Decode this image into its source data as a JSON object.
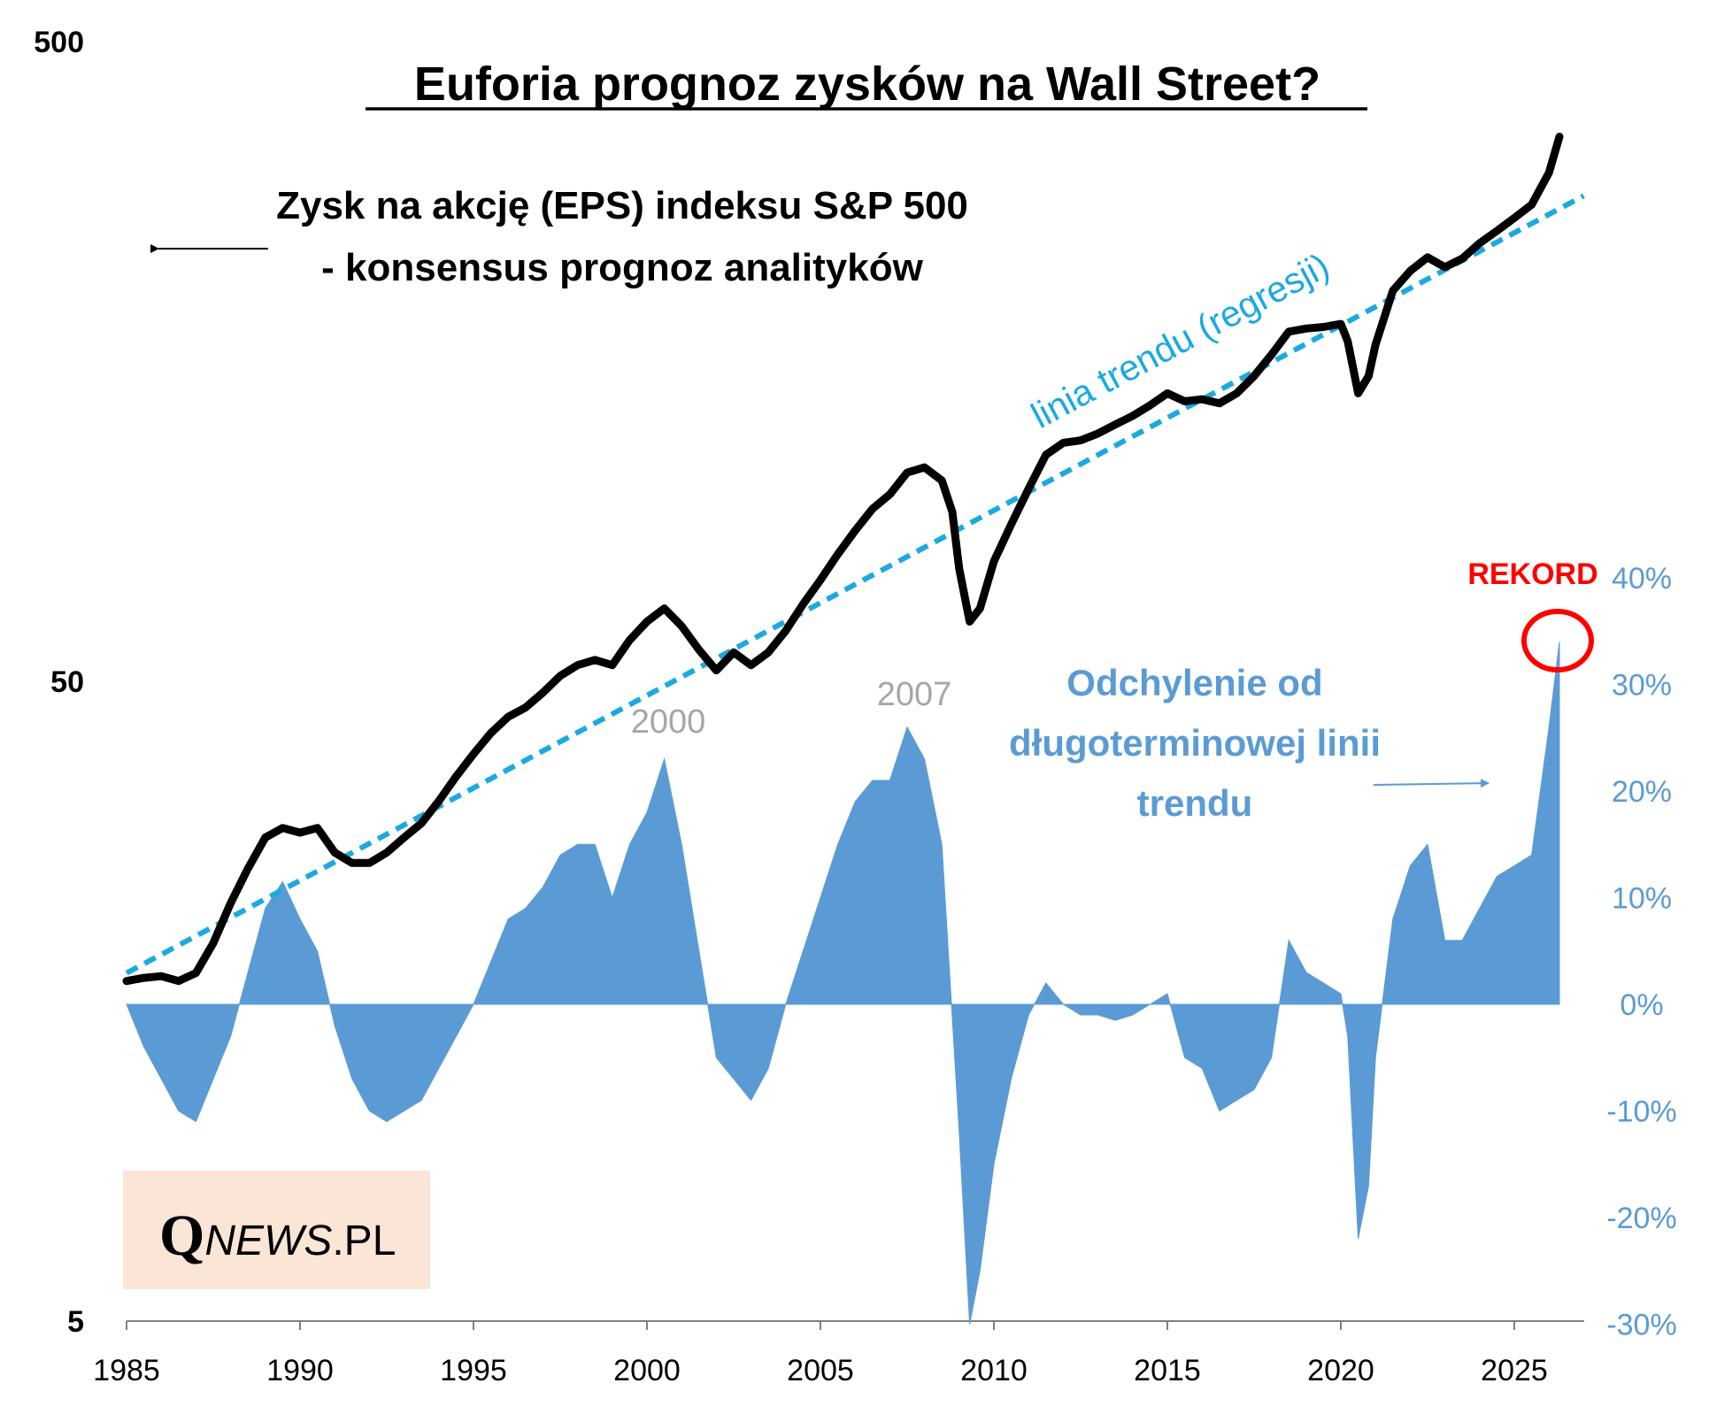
{
  "chart_data": {
    "type": "line+area",
    "title": "Euforia prognoz zysków na Wall Street?",
    "x_ticks": [
      "1985",
      "1990",
      "1995",
      "2000",
      "2005",
      "2010",
      "2015",
      "2020",
      "2025"
    ],
    "xlim": [
      1985,
      2027
    ],
    "left_axis": {
      "scale": "log",
      "ticks": [
        "5",
        "50",
        "500"
      ],
      "range": [
        5,
        500
      ]
    },
    "right_axis": {
      "ticks": [
        "40%",
        "30%",
        "20%",
        "10%",
        "0%",
        "-10%",
        "-20%",
        "-30%"
      ],
      "range": [
        -30,
        40
      ]
    },
    "colors": {
      "eps_line": "#000000",
      "trend_line": "#1ba9e1",
      "deviation_area": "#5b9bd5",
      "record": "#ff0000",
      "peak_labels": "#a6a6a6",
      "logo_bg": "#fbe5d6"
    },
    "series": [
      {
        "name": "Zysk na akcję (EPS) indeksu S&P 500 - konsensus prognoz analityków",
        "axis": "left",
        "points": [
          [
            1985.0,
            17.0
          ],
          [
            1985.5,
            17.2
          ],
          [
            1986.0,
            17.3
          ],
          [
            1986.5,
            17.0
          ],
          [
            1987.0,
            17.5
          ],
          [
            1987.5,
            19.5
          ],
          [
            1988.0,
            22.5
          ],
          [
            1988.5,
            25.5
          ],
          [
            1989.0,
            28.5
          ],
          [
            1989.5,
            29.5
          ],
          [
            1990.0,
            29.0
          ],
          [
            1990.5,
            29.5
          ],
          [
            1991.0,
            27.0
          ],
          [
            1991.5,
            26.0
          ],
          [
            1992.0,
            26.0
          ],
          [
            1992.5,
            27.0
          ],
          [
            1993.0,
            28.5
          ],
          [
            1993.5,
            30.0
          ],
          [
            1994.0,
            32.5
          ],
          [
            1994.5,
            35.5
          ],
          [
            1995.0,
            38.5
          ],
          [
            1995.5,
            41.5
          ],
          [
            1996.0,
            44.0
          ],
          [
            1996.5,
            45.5
          ],
          [
            1997.0,
            48.0
          ],
          [
            1997.5,
            51.0
          ],
          [
            1998.0,
            53.0
          ],
          [
            1998.5,
            54.0
          ],
          [
            1999.0,
            53.0
          ],
          [
            1999.5,
            58.0
          ],
          [
            2000.0,
            62.0
          ],
          [
            2000.5,
            65.0
          ],
          [
            2001.0,
            61.0
          ],
          [
            2001.5,
            56.0
          ],
          [
            2002.0,
            52.0
          ],
          [
            2002.5,
            55.5
          ],
          [
            2003.0,
            53.0
          ],
          [
            2003.5,
            55.5
          ],
          [
            2004.0,
            60.0
          ],
          [
            2004.5,
            66.0
          ],
          [
            2005.0,
            72.0
          ],
          [
            2005.5,
            79.0
          ],
          [
            2006.0,
            86.0
          ],
          [
            2006.5,
            93.0
          ],
          [
            2007.0,
            98.0
          ],
          [
            2007.5,
            106.0
          ],
          [
            2008.0,
            108.0
          ],
          [
            2008.5,
            103.0
          ],
          [
            2008.8,
            92.0
          ],
          [
            2009.0,
            75.0
          ],
          [
            2009.3,
            62.0
          ],
          [
            2009.6,
            65.0
          ],
          [
            2010.0,
            77.0
          ],
          [
            2010.5,
            88.0
          ],
          [
            2011.0,
            100.0
          ],
          [
            2011.5,
            113.0
          ],
          [
            2012.0,
            118.0
          ],
          [
            2012.5,
            119.0
          ],
          [
            2013.0,
            122.0
          ],
          [
            2013.5,
            126.0
          ],
          [
            2014.0,
            130.0
          ],
          [
            2014.5,
            135.0
          ],
          [
            2015.0,
            141.0
          ],
          [
            2015.5,
            137.0
          ],
          [
            2016.0,
            138.0
          ],
          [
            2016.5,
            136.0
          ],
          [
            2017.0,
            141.0
          ],
          [
            2017.5,
            150.0
          ],
          [
            2018.0,
            162.0
          ],
          [
            2018.5,
            176.0
          ],
          [
            2019.0,
            178.0
          ],
          [
            2019.5,
            179.0
          ],
          [
            2020.0,
            181.0
          ],
          [
            2020.2,
            170.0
          ],
          [
            2020.5,
            141.0
          ],
          [
            2020.8,
            150.0
          ],
          [
            2021.0,
            168.0
          ],
          [
            2021.5,
            204.0
          ],
          [
            2022.0,
            219.0
          ],
          [
            2022.5,
            230.0
          ],
          [
            2023.0,
            222.0
          ],
          [
            2023.5,
            229.0
          ],
          [
            2024.0,
            242.0
          ],
          [
            2024.5,
            253.0
          ],
          [
            2025.0,
            265.0
          ],
          [
            2025.5,
            278.0
          ],
          [
            2026.0,
            312.0
          ],
          [
            2026.3,
            355.0
          ]
        ]
      },
      {
        "name": "linia trendu (regresji)",
        "axis": "left",
        "points": [
          [
            1985.0,
            17.5
          ],
          [
            2027.0,
            287.0
          ]
        ]
      },
      {
        "name": "Odchylenie od długoterminowej linii trendu",
        "axis": "right",
        "points": [
          [
            1985.0,
            0
          ],
          [
            1985.5,
            -4
          ],
          [
            1986.0,
            -7
          ],
          [
            1986.5,
            -10
          ],
          [
            1987.0,
            -11
          ],
          [
            1987.5,
            -7
          ],
          [
            1988.0,
            -3
          ],
          [
            1988.5,
            3
          ],
          [
            1989.0,
            9
          ],
          [
            1989.5,
            11.5
          ],
          [
            1990.0,
            8
          ],
          [
            1990.5,
            5
          ],
          [
            1991.0,
            -2
          ],
          [
            1991.5,
            -7
          ],
          [
            1992.0,
            -10
          ],
          [
            1992.5,
            -11
          ],
          [
            1993.0,
            -10
          ],
          [
            1993.5,
            -9
          ],
          [
            1994.0,
            -6
          ],
          [
            1994.5,
            -3
          ],
          [
            1995.0,
            0
          ],
          [
            1995.5,
            4
          ],
          [
            1996.0,
            8
          ],
          [
            1996.5,
            9
          ],
          [
            1997.0,
            11
          ],
          [
            1997.5,
            14
          ],
          [
            1998.0,
            15
          ],
          [
            1998.5,
            15
          ],
          [
            1999.0,
            10
          ],
          [
            1999.5,
            15
          ],
          [
            2000.0,
            18
          ],
          [
            2000.5,
            23
          ],
          [
            2001.0,
            15
          ],
          [
            2001.5,
            5
          ],
          [
            2002.0,
            -5
          ],
          [
            2002.5,
            -7
          ],
          [
            2003.0,
            -9
          ],
          [
            2003.5,
            -6
          ],
          [
            2004.0,
            0
          ],
          [
            2004.5,
            5
          ],
          [
            2005.0,
            10
          ],
          [
            2005.5,
            15
          ],
          [
            2006.0,
            19
          ],
          [
            2006.5,
            21
          ],
          [
            2007.0,
            21
          ],
          [
            2007.5,
            26
          ],
          [
            2008.0,
            23
          ],
          [
            2008.5,
            15
          ],
          [
            2009.0,
            -12
          ],
          [
            2009.3,
            -30
          ],
          [
            2009.6,
            -25
          ],
          [
            2010.0,
            -15
          ],
          [
            2010.5,
            -7
          ],
          [
            2011.0,
            -1
          ],
          [
            2011.5,
            2
          ],
          [
            2012.0,
            0
          ],
          [
            2012.5,
            -1
          ],
          [
            2013.0,
            -1
          ],
          [
            2013.5,
            -1.5
          ],
          [
            2014.0,
            -1
          ],
          [
            2014.5,
            0
          ],
          [
            2015.0,
            1
          ],
          [
            2015.5,
            -5
          ],
          [
            2016.0,
            -6
          ],
          [
            2016.5,
            -10
          ],
          [
            2017.0,
            -9
          ],
          [
            2017.5,
            -8
          ],
          [
            2018.0,
            -5
          ],
          [
            2018.5,
            6
          ],
          [
            2019.0,
            3
          ],
          [
            2019.5,
            2
          ],
          [
            2020.0,
            1
          ],
          [
            2020.2,
            -3
          ],
          [
            2020.5,
            -22
          ],
          [
            2020.8,
            -17
          ],
          [
            2021.0,
            -5
          ],
          [
            2021.5,
            8
          ],
          [
            2022.0,
            13
          ],
          [
            2022.5,
            15
          ],
          [
            2023.0,
            6
          ],
          [
            2023.5,
            6
          ],
          [
            2024.0,
            9
          ],
          [
            2024.5,
            12
          ],
          [
            2025.0,
            13
          ],
          [
            2025.5,
            14
          ],
          [
            2026.0,
            26
          ],
          [
            2026.3,
            34
          ]
        ]
      }
    ],
    "annotations": {
      "eps_label": [
        "Zysk na akcję (EPS) indeksu S&P 500",
        "- konsensus prognoz analityków"
      ],
      "trend_label": "linia trendu (regresji)",
      "deviation_label": [
        "Odchylenie od",
        "długoterminowej linii",
        "trendu"
      ],
      "peak_2000": "2000",
      "peak_2007": "2007",
      "record": "REKORD"
    },
    "logo": {
      "q": "Q",
      "news": "NEWS",
      "pl": ".PL"
    }
  }
}
